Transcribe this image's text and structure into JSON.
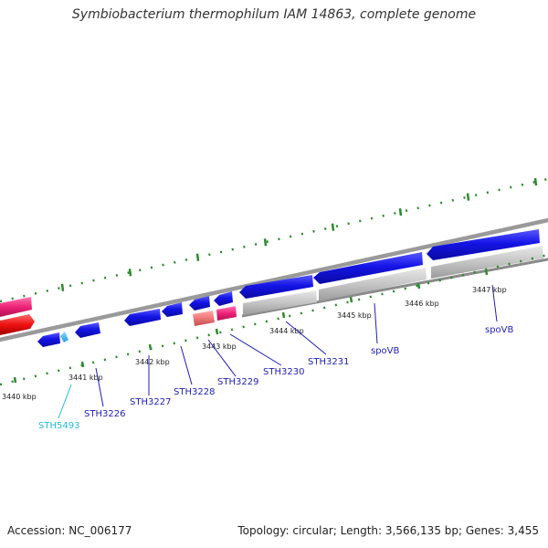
{
  "title": "Symbiobacterium thermophilum IAM 14863, complete genome",
  "footer": {
    "accession": "Accession: NC_006177",
    "summary": "Topology: circular; Length: 3,566,135 bp; Genes: 3,455"
  },
  "colors": {
    "gene_blue": "#1010e0",
    "label_blue": "#00008b",
    "label_cyan": "#22bbdd",
    "backbone": "#888888",
    "tick": "#2e8b2e",
    "pink": "#ee2277",
    "red": "#ee1111",
    "salmon": "#ee7777",
    "gray_feature": "#c4c4c4"
  },
  "scale_labels": [
    "3440 kbp",
    "3441 kbp",
    "3442 kbp",
    "3443 kbp",
    "3444 kbp",
    "3445 kbp",
    "3446 kbp",
    "3447 kbp"
  ],
  "gene_labels": [
    "STH5493",
    "STH3226",
    "STH3227",
    "STH3228",
    "STH3229",
    "STH3230",
    "STH3231",
    "spoVB",
    "spoVB"
  ]
}
